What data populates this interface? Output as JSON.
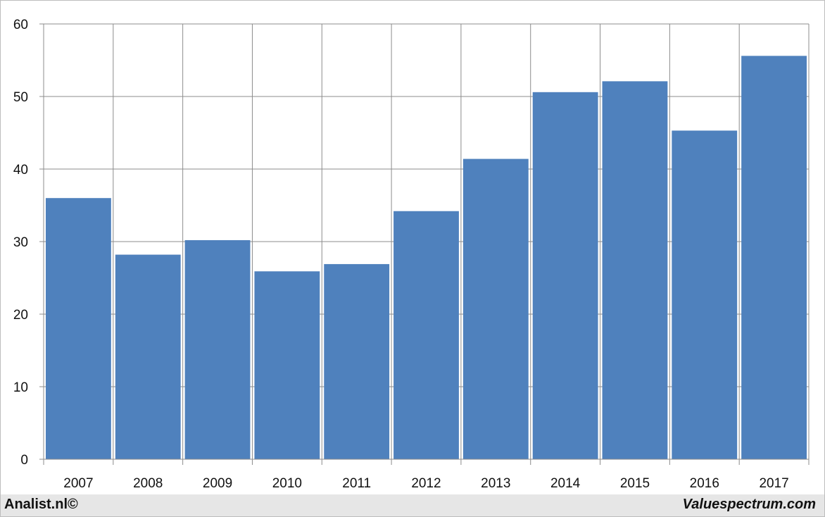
{
  "footer": {
    "left_text": "Analist.nl©",
    "right_text": "Valuespectrum.com"
  },
  "colors": {
    "bar": "#4f81bd",
    "grid": "#8c8c8c",
    "footer_bg": "#e6e6e6"
  },
  "chart_data": {
    "type": "bar",
    "categories": [
      "2007",
      "2008",
      "2009",
      "2010",
      "2011",
      "2012",
      "2013",
      "2014",
      "2015",
      "2016",
      "2017"
    ],
    "values": [
      36.0,
      28.2,
      30.2,
      25.9,
      26.9,
      34.2,
      41.4,
      50.6,
      52.1,
      45.3,
      55.6
    ],
    "title": "",
    "xlabel": "",
    "ylabel": "",
    "ylim": [
      0,
      60
    ],
    "yticks": [
      0,
      10,
      20,
      30,
      40,
      50,
      60
    ],
    "grid": true,
    "legend": "none"
  }
}
